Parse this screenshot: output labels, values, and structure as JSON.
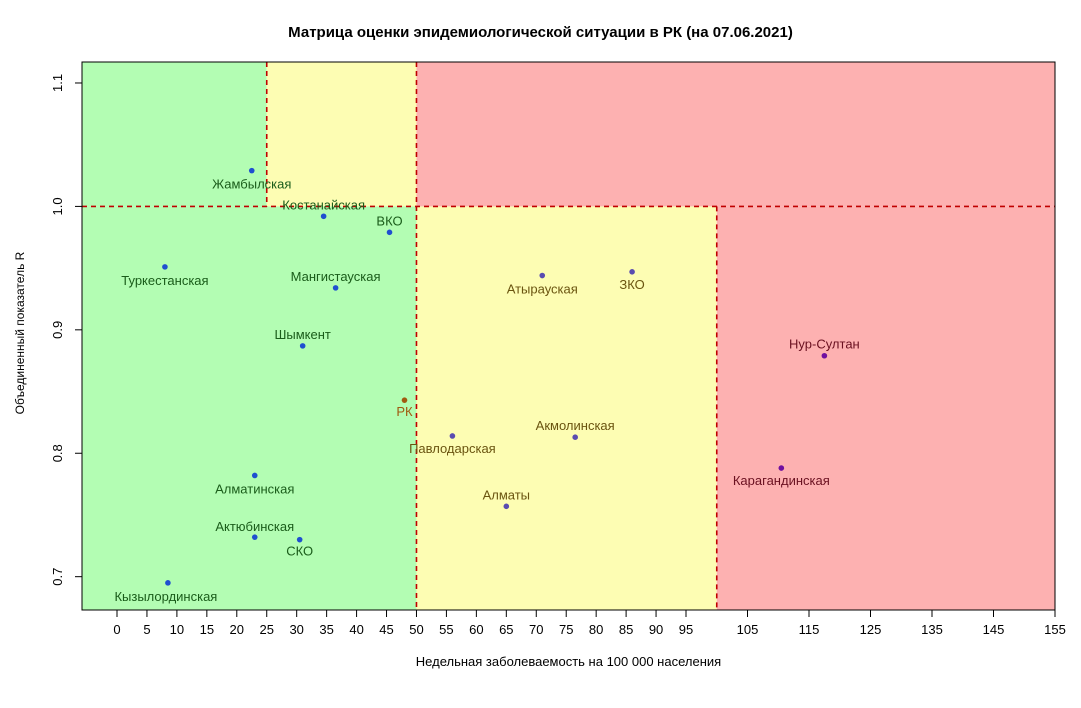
{
  "chart_data": {
    "type": "scatter",
    "title": "Матрица оценки эпидемиологической ситуации в РК (на 07.06.2021)",
    "xlabel": "Недельная заболеваемость на 100 000 населения",
    "ylabel": "Объединенный показатель R",
    "x_ticks": [
      0,
      5,
      10,
      15,
      20,
      25,
      30,
      35,
      40,
      45,
      50,
      55,
      60,
      65,
      70,
      75,
      80,
      85,
      90,
      95,
      105,
      115,
      125,
      135,
      145,
      155
    ],
    "y_ticks": [
      "0.7",
      "0.8",
      "0.9",
      "1.0",
      "1.1"
    ],
    "ylim": [
      0.673,
      1.117
    ],
    "thresholds": {
      "x": [
        25,
        50,
        100
      ],
      "y": 1.0
    },
    "zones": {
      "green": "#b3fdb3",
      "yellow": "#fdfdb3",
      "red": "#fdb1b1",
      "line": "#c00000"
    },
    "points": [
      {
        "name": "Жамбылская",
        "x": 22.5,
        "y": 1.029,
        "color": "#1f4fd0",
        "label_color": "#1a5c1a"
      },
      {
        "name": "Костанайская",
        "x": 34.5,
        "y": 0.992,
        "color": "#1f4fd0",
        "label_color": "#1a5c1a"
      },
      {
        "name": "ВКО",
        "x": 45.5,
        "y": 0.979,
        "color": "#1f4fd0",
        "label_color": "#1a5c1a"
      },
      {
        "name": "Туркестанская",
        "x": 8.0,
        "y": 0.951,
        "color": "#1f4fd0",
        "label_color": "#1a5c1a"
      },
      {
        "name": "Мангистауская",
        "x": 36.5,
        "y": 0.934,
        "color": "#1f4fd0",
        "label_color": "#1a5c1a"
      },
      {
        "name": "Шымкент",
        "x": 31.0,
        "y": 0.887,
        "color": "#1f4fd0",
        "label_color": "#1a5c1a"
      },
      {
        "name": "РК",
        "x": 48.0,
        "y": 0.843,
        "color": "#a05a10",
        "label_color": "#a05a10"
      },
      {
        "name": "Алматинская",
        "x": 23.0,
        "y": 0.782,
        "color": "#1f4fd0",
        "label_color": "#1a5c1a"
      },
      {
        "name": "Актюбинская",
        "x": 23.0,
        "y": 0.732,
        "color": "#1f4fd0",
        "label_color": "#1a5c1a"
      },
      {
        "name": "СКО",
        "x": 30.5,
        "y": 0.73,
        "color": "#1f4fd0",
        "label_color": "#1a5c1a"
      },
      {
        "name": "Кызылординская",
        "x": 8.5,
        "y": 0.695,
        "color": "#1f4fd0",
        "label_color": "#1a5c1a"
      },
      {
        "name": "Атырауская",
        "x": 71.0,
        "y": 0.944,
        "color": "#5a4cb0",
        "label_color": "#6a5410"
      },
      {
        "name": "ЗКО",
        "x": 86.0,
        "y": 0.947,
        "color": "#5a4cb0",
        "label_color": "#6a5410"
      },
      {
        "name": "Павлодарская",
        "x": 56.0,
        "y": 0.814,
        "color": "#5a4cb0",
        "label_color": "#6a5410"
      },
      {
        "name": "Акмолинская",
        "x": 76.5,
        "y": 0.813,
        "color": "#5a4cb0",
        "label_color": "#6a5410"
      },
      {
        "name": "Алматы",
        "x": 65.0,
        "y": 0.757,
        "color": "#5a4cb0",
        "label_color": "#6a5410"
      },
      {
        "name": "Нур-Султан",
        "x": 117.5,
        "y": 0.879,
        "color": "#7010a0",
        "label_color": "#6a1020"
      },
      {
        "name": "Карагандинская",
        "x": 110.5,
        "y": 0.788,
        "color": "#7010a0",
        "label_color": "#6a1020"
      }
    ]
  }
}
